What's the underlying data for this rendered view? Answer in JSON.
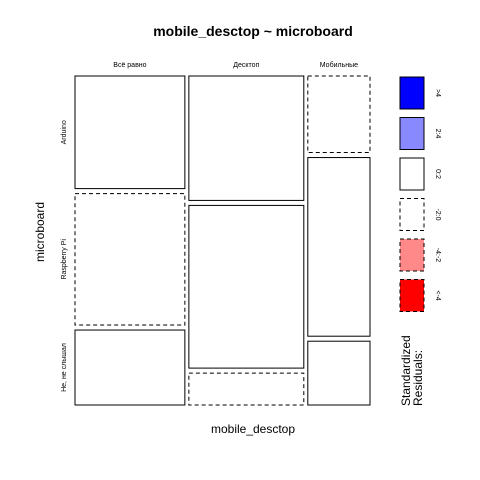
{
  "chart_data": {
    "type": "mosaic",
    "title": "mobile_desctop ~ microboard",
    "xlabel": "mobile_desctop",
    "ylabel": "microboard",
    "x_categories": [
      "Всё равно",
      "Десктоп",
      "Мобильные"
    ],
    "y_categories": [
      "Arduino",
      "Raspberry Pi",
      "Не, не слышал"
    ],
    "column_proportions": [
      0.325,
      0.34,
      0.184
    ],
    "cells": [
      {
        "x": "Всё равно",
        "y": "Arduino",
        "proportion": 0.353,
        "residual_class": "0:2",
        "border": "solid"
      },
      {
        "x": "Всё равно",
        "y": "Raspberry Pi",
        "proportion": 0.412,
        "residual_class": "-2:0",
        "border": "dashed"
      },
      {
        "x": "Всё равно",
        "y": "Не, не слышал",
        "proportion": 0.235,
        "residual_class": "0:2",
        "border": "solid"
      },
      {
        "x": "Десктоп",
        "y": "Arduino",
        "proportion": 0.39,
        "residual_class": "0:2",
        "border": "solid"
      },
      {
        "x": "Десктоп",
        "y": "Raspberry Pi",
        "proportion": 0.51,
        "residual_class": "0:2",
        "border": "solid"
      },
      {
        "x": "Десктоп",
        "y": "Не, не слышал",
        "proportion": 0.1,
        "residual_class": "-2:0",
        "border": "dashed"
      },
      {
        "x": "Мобильные",
        "y": "Arduino",
        "proportion": 0.24,
        "residual_class": "-2:0",
        "border": "dashed"
      },
      {
        "x": "Мобильные",
        "y": "Raspberry Pi",
        "proportion": 0.56,
        "residual_class": "0:2",
        "border": "solid"
      },
      {
        "x": "Мобильные",
        "y": "Не, не слышал",
        "proportion": 0.2,
        "residual_class": "0:2",
        "border": "solid"
      }
    ],
    "legend": {
      "title": "Standardized\nResiduals:",
      "placement": "right",
      "items": [
        {
          "label": ">4",
          "fill": "#0000ff",
          "border": "solid"
        },
        {
          "label": "2:4",
          "fill": "#8888ff",
          "border": "solid"
        },
        {
          "label": "0:2",
          "fill": "#ffffff",
          "border": "solid"
        },
        {
          "label": "-2:0",
          "fill": "#ffffff",
          "border": "dashed"
        },
        {
          "label": "-4:-2",
          "fill": "#ff8888",
          "border": "dashed"
        },
        {
          "label": "<-4",
          "fill": "#ff0000",
          "border": "dashed"
        }
      ]
    }
  }
}
